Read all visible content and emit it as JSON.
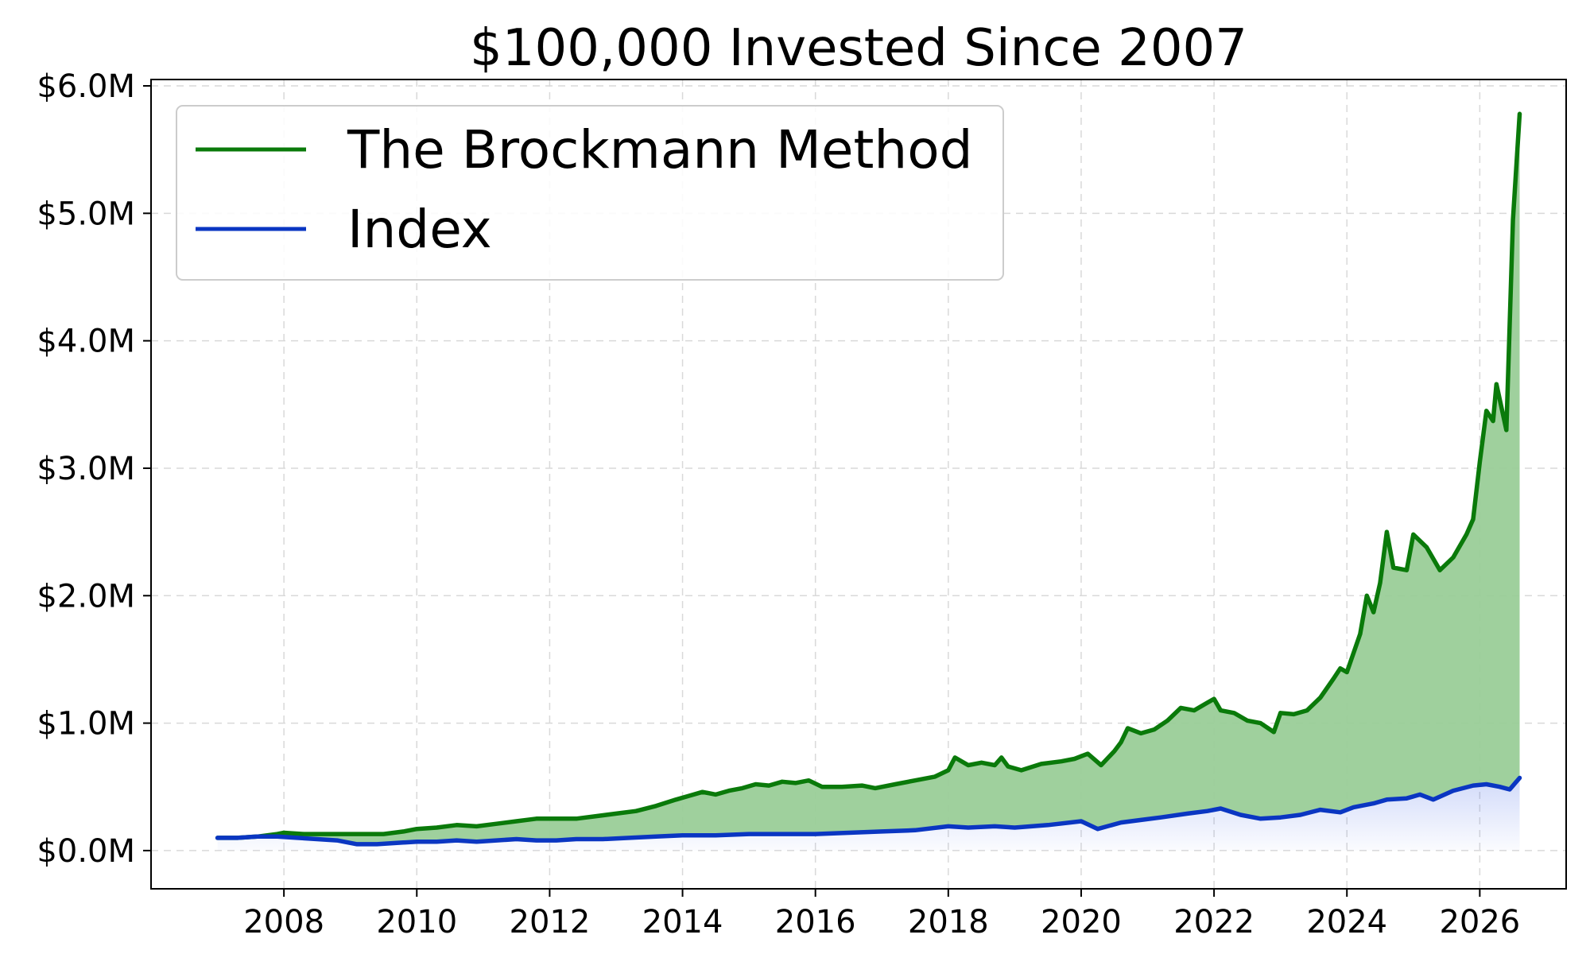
{
  "chart_data": {
    "type": "line",
    "title": "$100,000 Invested Since 2007",
    "xlabel": "",
    "ylabel": "",
    "xlim": [
      2006.0,
      2027.3
    ],
    "ylim": [
      -0.3,
      6.05
    ],
    "x_ticks": [
      2008,
      2010,
      2012,
      2014,
      2016,
      2018,
      2020,
      2022,
      2024,
      2026
    ],
    "x_tick_labels": [
      "2008",
      "2010",
      "2012",
      "2014",
      "2016",
      "2018",
      "2020",
      "2022",
      "2024",
      "2026"
    ],
    "y_ticks": [
      0,
      1,
      2,
      3,
      4,
      5,
      6
    ],
    "y_tick_labels": [
      "$0.0M",
      "$1.0M",
      "$2.0M",
      "$3.0M",
      "$4.0M",
      "$5.0M",
      "$6.0M"
    ],
    "grid": true,
    "legend_position": "top-left",
    "y_unit": "millions of dollars",
    "series": [
      {
        "name": "The Brockmann Method",
        "color": "#0a7a0a",
        "fill_color": "#9acd98",
        "points": [
          [
            2007.0,
            0.1
          ],
          [
            2007.3,
            0.1
          ],
          [
            2007.6,
            0.11
          ],
          [
            2007.9,
            0.13
          ],
          [
            2008.0,
            0.14
          ],
          [
            2008.3,
            0.13
          ],
          [
            2008.6,
            0.13
          ],
          [
            2008.9,
            0.13
          ],
          [
            2009.2,
            0.13
          ],
          [
            2009.5,
            0.13
          ],
          [
            2009.8,
            0.15
          ],
          [
            2010.0,
            0.17
          ],
          [
            2010.3,
            0.18
          ],
          [
            2010.6,
            0.2
          ],
          [
            2010.9,
            0.19
          ],
          [
            2011.2,
            0.21
          ],
          [
            2011.5,
            0.23
          ],
          [
            2011.8,
            0.25
          ],
          [
            2012.1,
            0.25
          ],
          [
            2012.4,
            0.25
          ],
          [
            2012.7,
            0.27
          ],
          [
            2013.0,
            0.29
          ],
          [
            2013.3,
            0.31
          ],
          [
            2013.6,
            0.35
          ],
          [
            2013.9,
            0.4
          ],
          [
            2014.1,
            0.43
          ],
          [
            2014.3,
            0.46
          ],
          [
            2014.5,
            0.44
          ],
          [
            2014.7,
            0.47
          ],
          [
            2014.9,
            0.49
          ],
          [
            2015.1,
            0.52
          ],
          [
            2015.3,
            0.51
          ],
          [
            2015.5,
            0.54
          ],
          [
            2015.7,
            0.53
          ],
          [
            2015.9,
            0.55
          ],
          [
            2016.1,
            0.5
          ],
          [
            2016.4,
            0.5
          ],
          [
            2016.7,
            0.51
          ],
          [
            2016.9,
            0.49
          ],
          [
            2017.2,
            0.52
          ],
          [
            2017.5,
            0.55
          ],
          [
            2017.8,
            0.58
          ],
          [
            2018.0,
            0.63
          ],
          [
            2018.1,
            0.73
          ],
          [
            2018.3,
            0.67
          ],
          [
            2018.5,
            0.69
          ],
          [
            2018.7,
            0.67
          ],
          [
            2018.8,
            0.73
          ],
          [
            2018.9,
            0.66
          ],
          [
            2019.1,
            0.63
          ],
          [
            2019.4,
            0.68
          ],
          [
            2019.7,
            0.7
          ],
          [
            2019.9,
            0.72
          ],
          [
            2020.1,
            0.76
          ],
          [
            2020.3,
            0.67
          ],
          [
            2020.5,
            0.78
          ],
          [
            2020.6,
            0.85
          ],
          [
            2020.7,
            0.96
          ],
          [
            2020.9,
            0.92
          ],
          [
            2021.1,
            0.95
          ],
          [
            2021.3,
            1.02
          ],
          [
            2021.5,
            1.12
          ],
          [
            2021.7,
            1.1
          ],
          [
            2021.9,
            1.16
          ],
          [
            2022.0,
            1.19
          ],
          [
            2022.1,
            1.1
          ],
          [
            2022.3,
            1.08
          ],
          [
            2022.5,
            1.02
          ],
          [
            2022.7,
            1.0
          ],
          [
            2022.9,
            0.93
          ],
          [
            2023.0,
            1.08
          ],
          [
            2023.2,
            1.07
          ],
          [
            2023.4,
            1.1
          ],
          [
            2023.6,
            1.2
          ],
          [
            2023.8,
            1.35
          ],
          [
            2023.9,
            1.43
          ],
          [
            2024.0,
            1.4
          ],
          [
            2024.2,
            1.7
          ],
          [
            2024.3,
            2.0
          ],
          [
            2024.4,
            1.87
          ],
          [
            2024.5,
            2.1
          ],
          [
            2024.6,
            2.5
          ],
          [
            2024.7,
            2.22
          ],
          [
            2024.9,
            2.2
          ],
          [
            2025.0,
            2.48
          ],
          [
            2025.2,
            2.38
          ],
          [
            2025.4,
            2.2
          ],
          [
            2025.6,
            2.3
          ],
          [
            2025.8,
            2.48
          ],
          [
            2025.9,
            2.6
          ],
          [
            2026.0,
            3.05
          ],
          [
            2026.1,
            3.45
          ],
          [
            2026.2,
            3.37
          ],
          [
            2026.25,
            3.66
          ],
          [
            2026.4,
            3.3
          ],
          [
            2026.5,
            4.95
          ],
          [
            2026.6,
            5.78
          ]
        ]
      },
      {
        "name": "Index",
        "color": "#0a36c2",
        "fill_color": "#2f57e6",
        "points": [
          [
            2007.0,
            0.1
          ],
          [
            2007.3,
            0.1
          ],
          [
            2007.6,
            0.11
          ],
          [
            2007.9,
            0.11
          ],
          [
            2008.2,
            0.1
          ],
          [
            2008.5,
            0.09
          ],
          [
            2008.8,
            0.08
          ],
          [
            2009.1,
            0.05
          ],
          [
            2009.4,
            0.05
          ],
          [
            2009.7,
            0.06
          ],
          [
            2010.0,
            0.07
          ],
          [
            2010.3,
            0.07
          ],
          [
            2010.6,
            0.08
          ],
          [
            2010.9,
            0.07
          ],
          [
            2011.2,
            0.08
          ],
          [
            2011.5,
            0.09
          ],
          [
            2011.8,
            0.08
          ],
          [
            2012.1,
            0.08
          ],
          [
            2012.4,
            0.09
          ],
          [
            2012.8,
            0.09
          ],
          [
            2013.2,
            0.1
          ],
          [
            2013.6,
            0.11
          ],
          [
            2014.0,
            0.12
          ],
          [
            2014.5,
            0.12
          ],
          [
            2015.0,
            0.13
          ],
          [
            2015.5,
            0.13
          ],
          [
            2016.0,
            0.13
          ],
          [
            2016.5,
            0.14
          ],
          [
            2017.0,
            0.15
          ],
          [
            2017.5,
            0.16
          ],
          [
            2018.0,
            0.19
          ],
          [
            2018.3,
            0.18
          ],
          [
            2018.7,
            0.19
          ],
          [
            2019.0,
            0.18
          ],
          [
            2019.5,
            0.2
          ],
          [
            2020.0,
            0.23
          ],
          [
            2020.25,
            0.17
          ],
          [
            2020.6,
            0.22
          ],
          [
            2020.9,
            0.24
          ],
          [
            2021.2,
            0.26
          ],
          [
            2021.6,
            0.29
          ],
          [
            2021.9,
            0.31
          ],
          [
            2022.1,
            0.33
          ],
          [
            2022.4,
            0.28
          ],
          [
            2022.7,
            0.25
          ],
          [
            2023.0,
            0.26
          ],
          [
            2023.3,
            0.28
          ],
          [
            2023.6,
            0.32
          ],
          [
            2023.9,
            0.3
          ],
          [
            2024.1,
            0.34
          ],
          [
            2024.4,
            0.37
          ],
          [
            2024.6,
            0.4
          ],
          [
            2024.9,
            0.41
          ],
          [
            2025.1,
            0.44
          ],
          [
            2025.3,
            0.4
          ],
          [
            2025.6,
            0.47
          ],
          [
            2025.9,
            0.51
          ],
          [
            2026.1,
            0.52
          ],
          [
            2026.3,
            0.5
          ],
          [
            2026.45,
            0.48
          ],
          [
            2026.6,
            0.57
          ]
        ]
      }
    ]
  }
}
